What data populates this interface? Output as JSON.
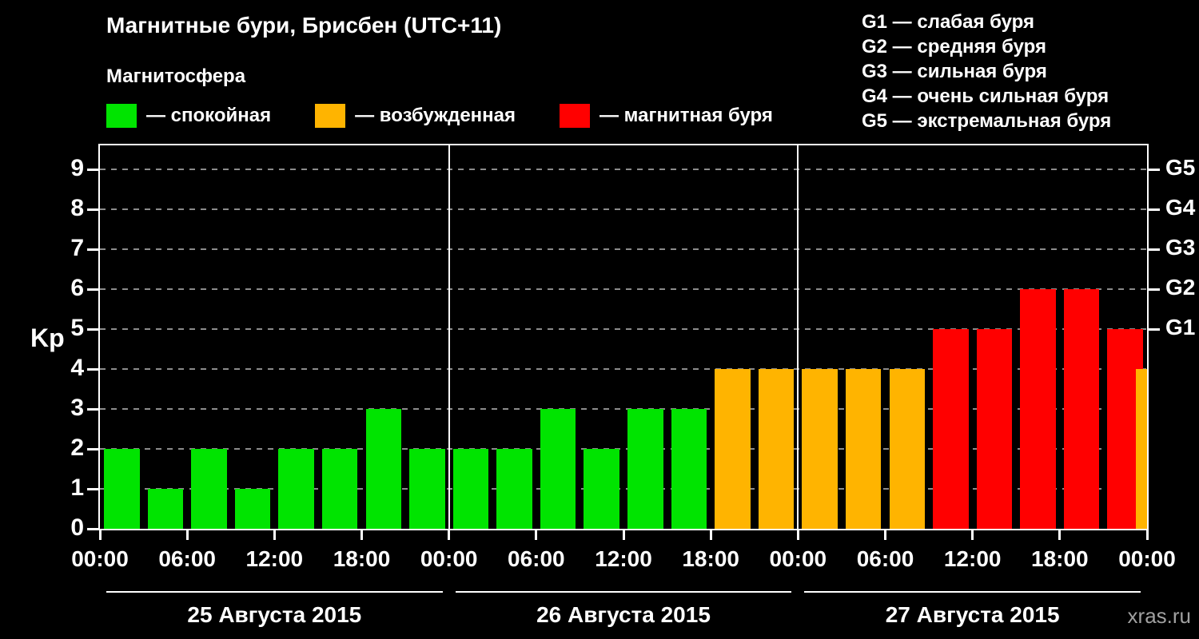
{
  "header": {
    "title": "Магнитные бури, Брисбен (UTC+11)",
    "subtitle": "Магнитосфера",
    "legend": [
      {
        "key": "quiet",
        "label": "— спокойная",
        "color": "#00e400"
      },
      {
        "key": "active",
        "label": "— возбужденная",
        "color": "#ffb400"
      },
      {
        "key": "storm",
        "label": "— магнитная буря",
        "color": "#ff0000"
      }
    ],
    "g_scale": [
      "G1 — слабая буря",
      "G2 — средняя буря",
      "G3 — сильная буря",
      "G4 — очень сильная буря",
      "G5 — экстремальная буря"
    ]
  },
  "watermark": "xras.ru",
  "chart_data": {
    "type": "bar",
    "title": "Магнитные бури, Брисбен (UTC+11)",
    "ylabel": "Kp",
    "ylim": [
      0,
      9.6
    ],
    "yticks": [
      0,
      1,
      2,
      3,
      4,
      5,
      6,
      7,
      8,
      9
    ],
    "bar_interval_hours": 3,
    "total_hours": 72,
    "kp_values": [
      2,
      1,
      2,
      1,
      2,
      2,
      3,
      2,
      2,
      2,
      3,
      2,
      3,
      3,
      4,
      4,
      4,
      4,
      4,
      5,
      5,
      6,
      6,
      5,
      4
    ],
    "last_bar_partial": true,
    "color_rule": {
      "quiet_kp_max": 3,
      "active_kp_max": 4
    },
    "colors": {
      "quiet": "#00e400",
      "active": "#ffb400",
      "storm": "#ff0000",
      "grid": "#8c8c8c",
      "axis": "#ffffff",
      "background": "#000000"
    },
    "x_ticks": [
      {
        "hour": 0,
        "label": "00:00"
      },
      {
        "hour": 6,
        "label": "06:00"
      },
      {
        "hour": 12,
        "label": "12:00"
      },
      {
        "hour": 18,
        "label": "18:00"
      },
      {
        "hour": 24,
        "label": "00:00"
      },
      {
        "hour": 30,
        "label": "06:00"
      },
      {
        "hour": 36,
        "label": "12:00"
      },
      {
        "hour": 42,
        "label": "18:00"
      },
      {
        "hour": 48,
        "label": "00:00"
      },
      {
        "hour": 54,
        "label": "06:00"
      },
      {
        "hour": 60,
        "label": "12:00"
      },
      {
        "hour": 66,
        "label": "18:00"
      },
      {
        "hour": 72,
        "label": "00:00"
      }
    ],
    "right_ticks": [
      {
        "value": 5,
        "label": "G1"
      },
      {
        "value": 6,
        "label": "G2"
      },
      {
        "value": 7,
        "label": "G3"
      },
      {
        "value": 8,
        "label": "G4"
      },
      {
        "value": 9,
        "label": "G5"
      }
    ],
    "day_boundaries_hours": [
      24,
      48
    ],
    "day_groups": [
      {
        "label": "25 Августа 2015",
        "start_hour": 0,
        "end_hour": 24
      },
      {
        "label": "26 Августа 2015",
        "start_hour": 24,
        "end_hour": 48
      },
      {
        "label": "27 Августа 2015",
        "start_hour": 48,
        "end_hour": 72
      }
    ],
    "legend_position": "top",
    "grid": "dashed-horizontal"
  }
}
